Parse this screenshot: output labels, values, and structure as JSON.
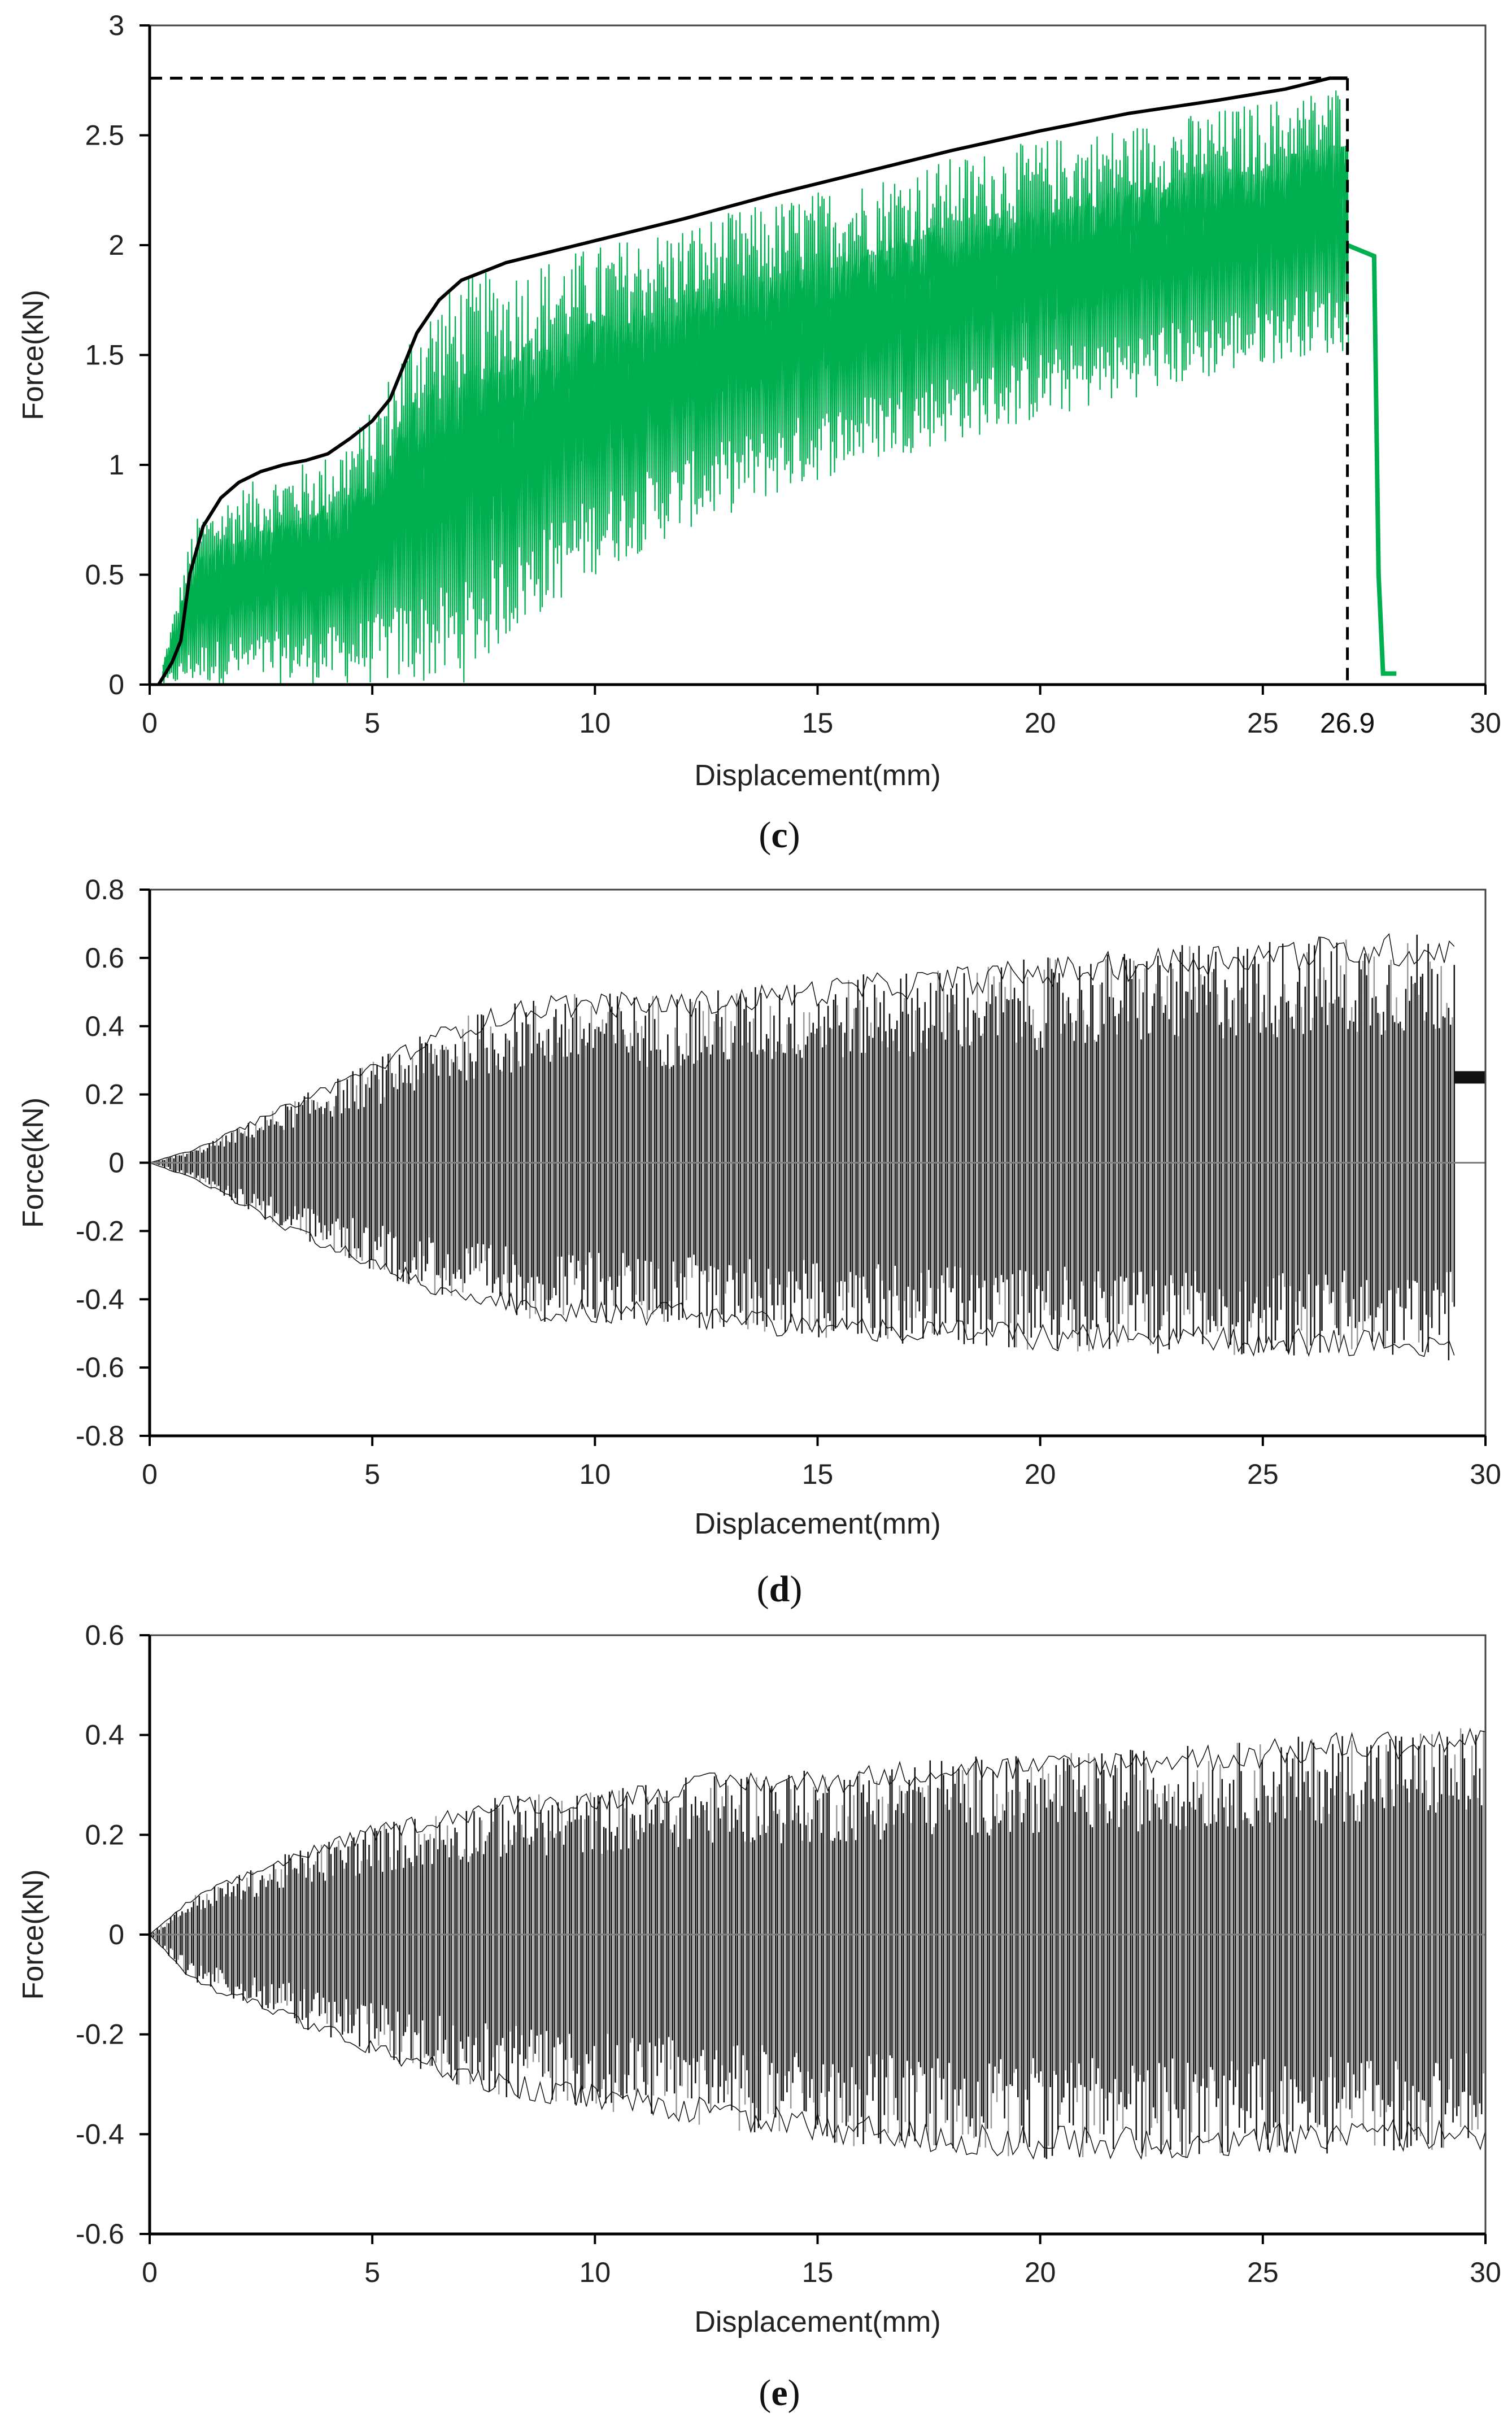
{
  "chart_data": [
    {
      "panel": "c",
      "type": "line",
      "caption": "(c)",
      "caption_prefix": "(",
      "caption_letter": "c",
      "caption_suffix": ")",
      "xlabel": "Displacement(mm)",
      "ylabel": "Force(kN)",
      "xlim": [
        0,
        30
      ],
      "ylim": [
        0,
        3
      ],
      "xticks": [
        0,
        5,
        10,
        15,
        20,
        25,
        30
      ],
      "yticks": [
        0,
        0.5,
        1,
        1.5,
        2,
        2.5,
        3
      ],
      "ytick_labels": [
        "0",
        "0.5",
        "1",
        "1.5",
        "2",
        "2.5",
        "3"
      ],
      "colors": {
        "signal": "#00b050",
        "envelope": "#000000",
        "axis": "#404040"
      },
      "envelope": {
        "x": [
          0.2,
          0.5,
          0.7,
          0.9,
          1.2,
          1.6,
          2.0,
          2.5,
          3.0,
          3.5,
          4.0,
          4.5,
          5.0,
          5.4,
          5.7,
          6.0,
          6.5,
          7.0,
          7.5,
          8.0,
          9.0,
          10.0,
          12.0,
          14.0,
          16.0,
          18.0,
          20.0,
          22.0,
          24.0,
          25.5,
          26.5,
          26.9
        ],
        "y": [
          0.0,
          0.1,
          0.2,
          0.5,
          0.72,
          0.85,
          0.92,
          0.97,
          1.0,
          1.02,
          1.05,
          1.12,
          1.2,
          1.3,
          1.45,
          1.6,
          1.75,
          1.84,
          1.88,
          1.92,
          1.97,
          2.02,
          2.12,
          2.23,
          2.33,
          2.43,
          2.52,
          2.6,
          2.66,
          2.71,
          2.76,
          2.76
        ]
      },
      "signal_upper": {
        "x": [
          0.3,
          1,
          2,
          3,
          4,
          5,
          6,
          7,
          8,
          10,
          12,
          14,
          16,
          18,
          20,
          22,
          24,
          26,
          26.9
        ],
        "y": [
          0.1,
          0.75,
          0.9,
          0.98,
          1.05,
          1.25,
          1.7,
          1.85,
          1.9,
          2.0,
          2.1,
          2.2,
          2.3,
          2.4,
          2.48,
          2.55,
          2.62,
          2.7,
          2.75
        ]
      },
      "signal_lower": {
        "x": [
          0.3,
          5,
          6,
          7,
          8,
          10,
          12,
          14,
          16,
          18,
          20,
          22,
          24,
          26,
          26.9
        ],
        "y": [
          0,
          0,
          0,
          0,
          0.2,
          0.5,
          0.7,
          0.85,
          1.0,
          1.1,
          1.2,
          1.3,
          1.4,
          1.5,
          1.5
        ]
      },
      "post_failure": {
        "x": [
          26.9,
          27.5,
          27.6,
          27.7,
          28.0
        ],
        "y": [
          2.0,
          1.95,
          0.5,
          0.05,
          0.05
        ]
      },
      "peak": {
        "x": 26.9,
        "y": 2.76
      },
      "annotation_label": "26.9"
    },
    {
      "panel": "d",
      "type": "line",
      "caption": "(d)",
      "caption_prefix": "(",
      "caption_letter": "d",
      "caption_suffix": ")",
      "xlabel": "Displacement(mm)",
      "ylabel": "Force(kN)",
      "xlim": [
        0,
        30
      ],
      "ylim": [
        -0.8,
        0.8
      ],
      "xticks": [
        0,
        5,
        10,
        15,
        20,
        25,
        30
      ],
      "yticks": [
        -0.8,
        -0.6,
        -0.4,
        -0.2,
        0,
        0.2,
        0.4,
        0.6,
        0.8
      ],
      "ytick_labels": [
        "-0.8",
        "-0.6",
        "-0.4",
        "-0.2",
        "0",
        "0.2",
        "0.4",
        "0.6",
        "0.8"
      ],
      "colors": {
        "signal": "#111111",
        "axis": "#404040",
        "zero_line": "#808080"
      },
      "envelope_upper": {
        "x": [
          0,
          1,
          3,
          5,
          7,
          9,
          12,
          15,
          20,
          25,
          29.3
        ],
        "y": [
          0.0,
          0.04,
          0.17,
          0.3,
          0.43,
          0.5,
          0.5,
          0.54,
          0.6,
          0.66,
          0.68
        ]
      },
      "envelope_lower": {
        "x": [
          0,
          1,
          3,
          5,
          7,
          9,
          12,
          15,
          20,
          25,
          29.3
        ],
        "y": [
          0.0,
          -0.05,
          -0.2,
          -0.32,
          -0.42,
          -0.47,
          -0.48,
          -0.52,
          -0.55,
          -0.57,
          -0.58
        ]
      },
      "post_failure": {
        "x": [
          29.3,
          30
        ],
        "y": [
          0.25,
          0.25
        ]
      }
    },
    {
      "panel": "e",
      "type": "line",
      "caption": "(e)",
      "caption_prefix": "(",
      "caption_letter": "e",
      "caption_suffix": ")",
      "xlabel": "Displacement(mm)",
      "ylabel": "Force(kN)",
      "xlim": [
        0,
        30
      ],
      "ylim": [
        -0.6,
        0.6
      ],
      "xticks": [
        0,
        5,
        10,
        15,
        20,
        25,
        30
      ],
      "yticks": [
        -0.6,
        -0.4,
        -0.2,
        0,
        0.2,
        0.4,
        0.6
      ],
      "ytick_labels": [
        "-0.6",
        "-0.4",
        "-0.2",
        "0",
        "0.2",
        "0.4",
        "0.6"
      ],
      "colors": {
        "signal": "#111111",
        "axis": "#404040",
        "zero_line": "#808080"
      },
      "envelope_upper": {
        "x": [
          0,
          1,
          3,
          5,
          8,
          10,
          13,
          15,
          18,
          20,
          23,
          25,
          27,
          30
        ],
        "y": [
          0.0,
          0.08,
          0.16,
          0.22,
          0.28,
          0.29,
          0.33,
          0.33,
          0.36,
          0.36,
          0.38,
          0.39,
          0.41,
          0.42
        ]
      },
      "envelope_lower": {
        "x": [
          0,
          1,
          3,
          5,
          8,
          10,
          13,
          15,
          18,
          20,
          23,
          25,
          27,
          30
        ],
        "y": [
          0.0,
          -0.1,
          -0.17,
          -0.25,
          -0.33,
          -0.35,
          -0.39,
          -0.42,
          -0.44,
          -0.45,
          -0.45,
          -0.44,
          -0.44,
          -0.43
        ]
      }
    }
  ]
}
